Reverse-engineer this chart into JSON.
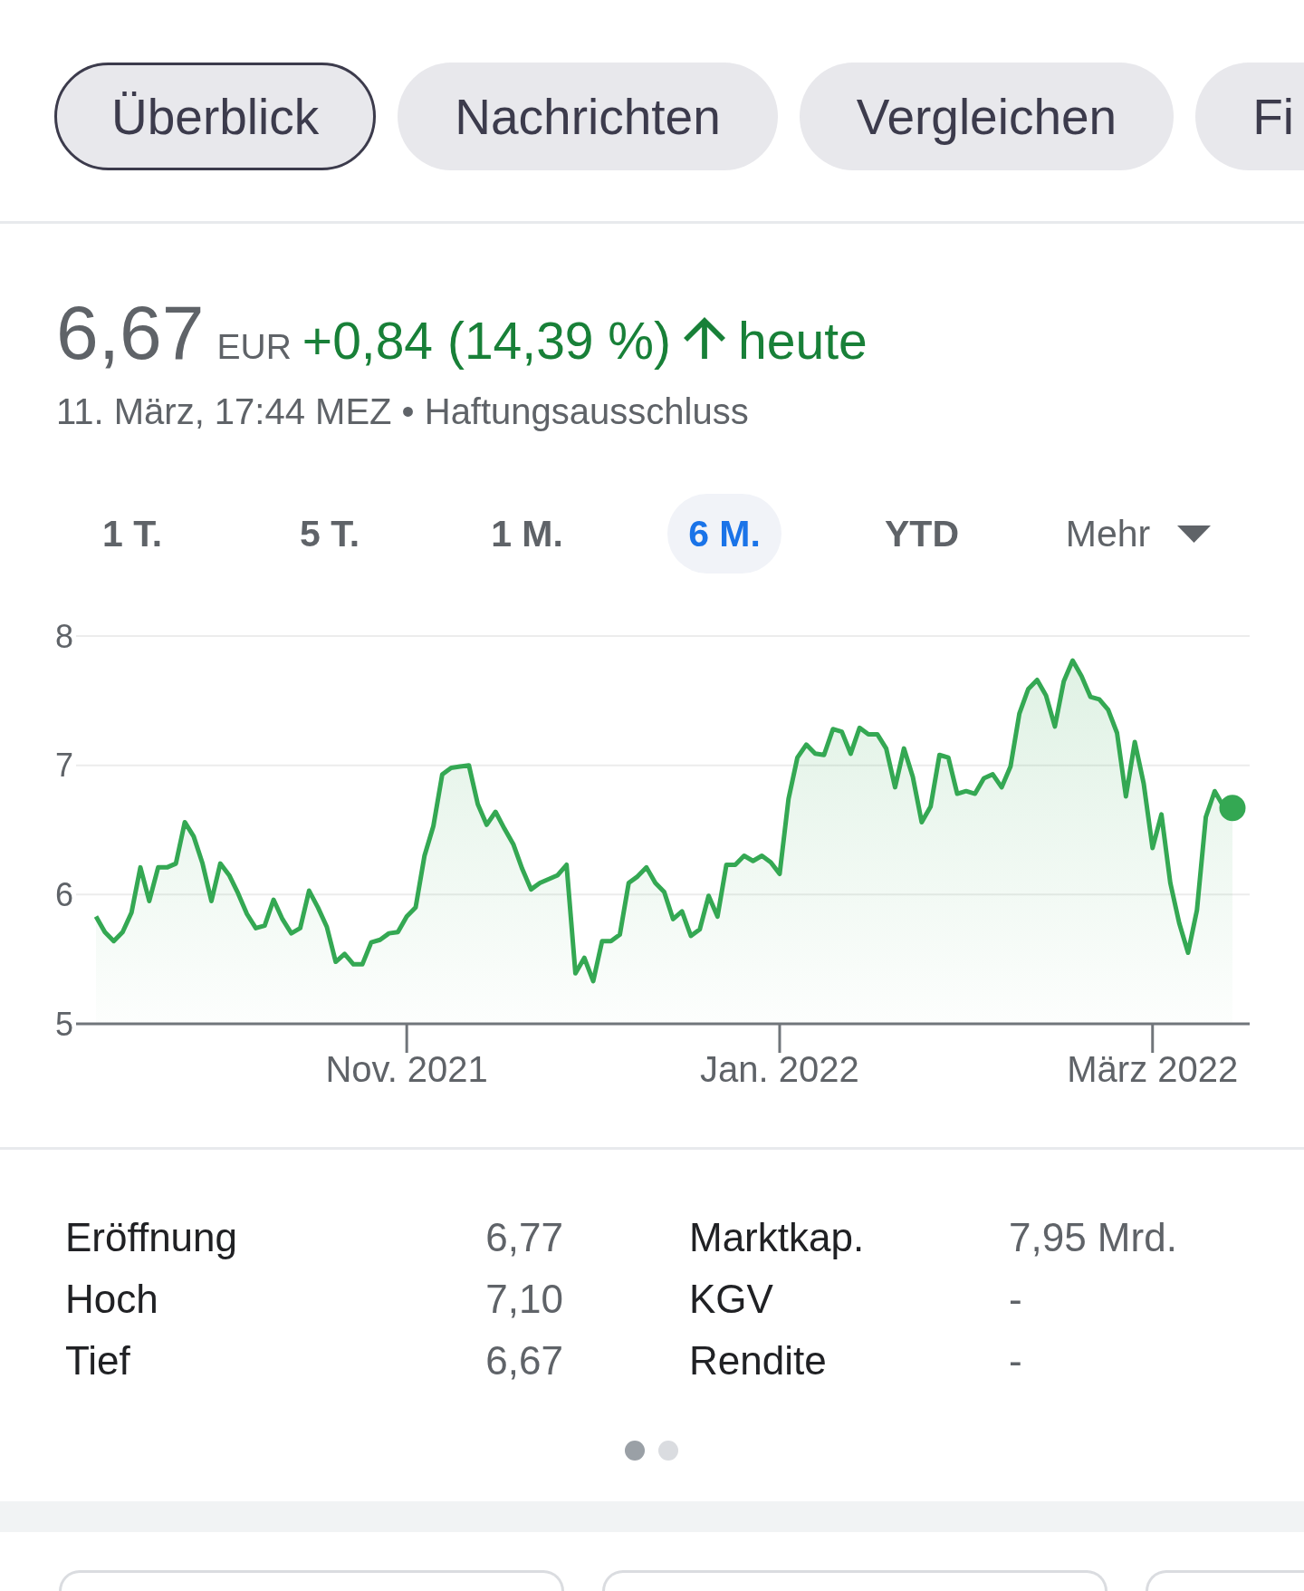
{
  "chart_data": [
    {
      "type": "other",
      "annotations": [
        "Überblick",
        "Nachrichten",
        "Vergleichen",
        "Fi"
      ]
    },
    {
      "type": "area",
      "title": "6,67",
      "subtitle": "11. März, 17:44 MEZ • Haftungsausschluss",
      "annotations": [
        "EUR",
        "+0,84 (14,39 %)",
        "heute",
        "1 T.",
        "5 T.",
        "1 M.",
        "6 M.",
        "YTD",
        "Mehr"
      ],
      "categories": [
        null,
        null,
        null,
        null,
        null,
        null,
        null,
        null,
        null,
        null,
        null,
        null,
        null,
        null,
        null,
        null,
        null,
        null,
        null,
        null,
        null,
        null,
        null,
        null,
        null,
        null,
        null,
        null,
        null,
        null,
        null,
        null,
        null,
        null,
        null,
        "Nov. 2021",
        null,
        null,
        null,
        null,
        null,
        null,
        null,
        null,
        null,
        null,
        null,
        null,
        null,
        null,
        null,
        null,
        null,
        null,
        null,
        null,
        null,
        null,
        null,
        null,
        null,
        null,
        null,
        null,
        null,
        null,
        null,
        null,
        null,
        null,
        null,
        null,
        null,
        null,
        null,
        null,
        null,
        "Jan. 2022",
        null,
        null,
        null,
        null,
        null,
        null,
        null,
        null,
        null,
        null,
        null,
        null,
        null,
        null,
        null,
        null,
        null,
        null,
        null,
        null,
        null,
        null,
        null,
        null,
        null,
        null,
        null,
        null,
        null,
        null,
        null,
        null,
        null,
        null,
        null,
        null,
        null,
        null,
        null,
        null,
        null,
        "März 2022",
        null,
        null,
        null,
        null,
        null,
        null,
        null,
        null,
        null
      ],
      "series": [
        {
          "color": "#34a853",
          "values": [
            5.83,
            5.71,
            5.64,
            5.71,
            5.86,
            6.21,
            5.95,
            6.21,
            6.21,
            6.24,
            6.56,
            6.45,
            6.24,
            5.95,
            6.24,
            6.15,
            6.01,
            5.85,
            5.74,
            5.76,
            5.96,
            5.81,
            5.7,
            5.74,
            6.03,
            5.9,
            5.75,
            5.48,
            5.54,
            5.46,
            5.46,
            5.63,
            5.65,
            5.7,
            5.71,
            5.83,
            5.9,
            6.3,
            6.53,
            6.93,
            6.98,
            6.99,
            7.0,
            6.7,
            6.54,
            6.64,
            6.51,
            6.39,
            6.2,
            6.04,
            6.09,
            6.12,
            6.15,
            6.23,
            5.39,
            5.51,
            5.33,
            5.64,
            5.64,
            5.69,
            6.09,
            6.14,
            6.21,
            6.09,
            6.02,
            5.81,
            5.87,
            5.68,
            5.73,
            5.99,
            5.83,
            6.23,
            6.23,
            6.3,
            6.26,
            6.3,
            6.25,
            6.16,
            6.74,
            7.06,
            7.16,
            7.09,
            7.08,
            7.28,
            7.26,
            7.09,
            7.29,
            7.24,
            7.24,
            7.13,
            6.83,
            7.13,
            6.91,
            6.56,
            6.68,
            7.08,
            7.06,
            6.78,
            6.8,
            6.78,
            6.9,
            6.93,
            6.83,
            6.99,
            7.4,
            7.59,
            7.66,
            7.54,
            7.3,
            7.65,
            7.81,
            7.69,
            7.53,
            7.51,
            7.43,
            7.25,
            6.76,
            7.18,
            6.86,
            6.36,
            6.62,
            6.09,
            5.78,
            5.55,
            5.88,
            6.6,
            6.8,
            6.68,
            6.67
          ]
        },
        {
          "type": "scatter",
          "marker": "circle",
          "color": "#34a853",
          "values": [
            null,
            null,
            null,
            null,
            null,
            null,
            null,
            null,
            null,
            null,
            null,
            null,
            null,
            null,
            null,
            null,
            null,
            null,
            null,
            null,
            null,
            null,
            null,
            null,
            null,
            null,
            null,
            null,
            null,
            null,
            null,
            null,
            null,
            null,
            null,
            null,
            null,
            null,
            null,
            null,
            null,
            null,
            null,
            null,
            null,
            null,
            null,
            null,
            null,
            null,
            null,
            null,
            null,
            null,
            null,
            null,
            null,
            null,
            null,
            null,
            null,
            null,
            null,
            null,
            null,
            null,
            null,
            null,
            null,
            null,
            null,
            null,
            null,
            null,
            null,
            null,
            null,
            null,
            null,
            null,
            null,
            null,
            null,
            null,
            null,
            null,
            null,
            null,
            null,
            null,
            null,
            null,
            null,
            null,
            null,
            null,
            null,
            null,
            null,
            null,
            null,
            null,
            null,
            null,
            null,
            null,
            null,
            null,
            null,
            null,
            null,
            null,
            null,
            null,
            null,
            null,
            null,
            null,
            null,
            null,
            null,
            null,
            null,
            null,
            null,
            null,
            null,
            null,
            6.67
          ]
        }
      ],
      "ylim": [
        5,
        8
      ],
      "yticks": [
        5,
        6,
        7,
        8
      ],
      "grid": "y"
    },
    {
      "type": "other",
      "annotations": [
        "Eröffnung",
        "6,77",
        "Hoch",
        "7,10",
        "Tief",
        "6,67",
        "Marktkap.",
        "7,95 Mrd.",
        "KGV",
        "-",
        "Rendite",
        "-"
      ]
    }
  ]
}
